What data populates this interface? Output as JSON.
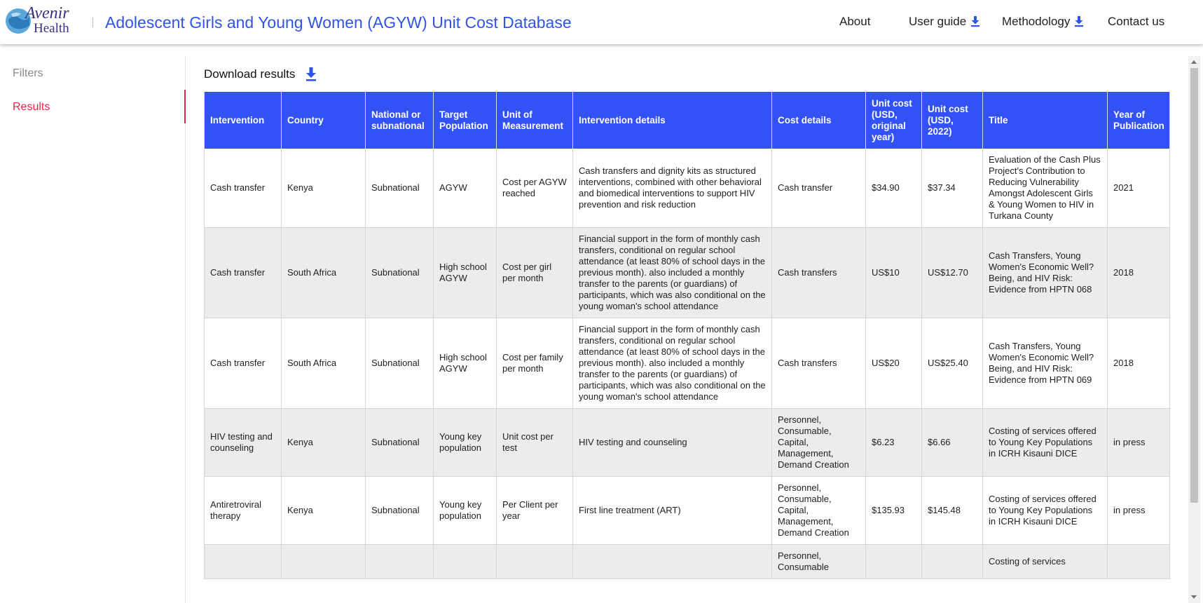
{
  "header": {
    "logo_text_top": "Avenir",
    "logo_text_bottom": "Health",
    "title": "Adolescent Girls and Young Women (AGYW) Unit Cost Database",
    "nav": {
      "about": "About",
      "user_guide": "User guide",
      "methodology": "Methodology",
      "contact": "Contact us"
    }
  },
  "sidebar": {
    "filters": "Filters",
    "results": "Results",
    "active": "Results"
  },
  "main": {
    "download_label": "Download results",
    "table": {
      "headers": [
        "Intervention",
        "Country",
        "National or subnational",
        "Target Population",
        "Unit of Measurement",
        "Intervention details",
        "Cost details",
        "Unit cost (USD, original year)",
        "Unit cost (USD, 2022)",
        "Title",
        "Year of Publication"
      ],
      "rows": [
        [
          "Cash transfer",
          "Kenya",
          "Subnational",
          "AGYW",
          "Cost per AGYW reached",
          "Cash transfers and dignity kits as structured interventions, combined with other behavioral and biomedical interventions to support HIV prevention and risk reduction",
          "Cash transfer",
          "$34.90",
          "$37.34",
          "Evaluation of the Cash Plus Project's Contribution to Reducing Vulnerability Amongst Adolescent Girls & Young Women to HIV in Turkana County",
          "2021"
        ],
        [
          "Cash transfer",
          "South Africa",
          "Subnational",
          "High school AGYW",
          "Cost per girl per month",
          "Financial support in the form of monthly cash transfers, conditional on regular school attendance (at least 80% of school days in the previous month). also included a monthly transfer to the parents (or guardians) of participants, which was also conditional on the young woman's school attendance",
          "Cash transfers",
          "US$10",
          "US$12.70",
          "Cash Transfers, Young Women's Economic Well? Being, and HIV Risk: Evidence from HPTN 068",
          "2018"
        ],
        [
          "Cash transfer",
          "South Africa",
          "Subnational",
          "High school AGYW",
          "Cost per family per month",
          "Financial support in the form of monthly cash transfers, conditional on regular school attendance (at least 80% of school days in the previous month). also included a monthly transfer to the parents (or guardians) of participants, which was also conditional on the young woman's school attendance",
          "Cash transfers",
          "US$20",
          "US$25.40",
          "Cash Transfers, Young Women's Economic Well? Being, and HIV Risk: Evidence from HPTN 069",
          "2018"
        ],
        [
          "HIV testing and counseling",
          "Kenya",
          "Subnational",
          "Young key population",
          "Unit cost per test",
          "HIV testing and counseling",
          "Personnel, Consumable, Capital, Management, Demand Creation",
          "$6.23",
          "$6.66",
          "Costing of services offered to Young Key Populations in ICRH Kisauni DICE",
          "in press"
        ],
        [
          "Antiretroviral therapy",
          "Kenya",
          "Subnational",
          "Young key population",
          "Per Client per year",
          "First line treatment (ART)",
          "Personnel, Consumable, Capital, Management, Demand Creation",
          "$135.93",
          "$145.48",
          "Costing of services offered to Young Key Populations in ICRH Kisauni DICE",
          "in press"
        ],
        [
          "",
          "",
          "",
          "",
          "",
          "",
          "Personnel, Consumable",
          "",
          "",
          "Costing of services",
          ""
        ]
      ]
    }
  },
  "colors": {
    "brand_blue": "#3053e8",
    "header_row": "#3352f5",
    "active_red": "#e4254a"
  }
}
